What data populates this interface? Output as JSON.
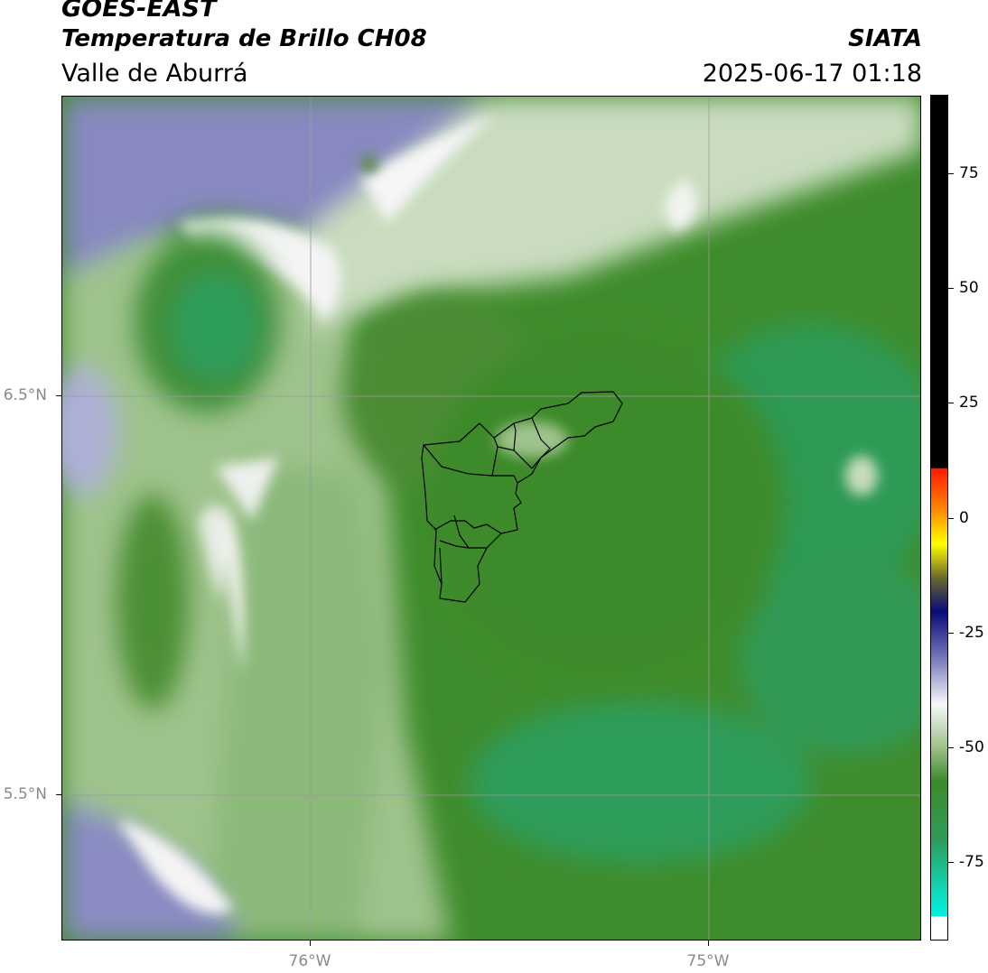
{
  "header": {
    "agency": "GOES-EAST",
    "title": "Temperatura de Brillo CH08",
    "subtitle": "Valle de Aburrá",
    "organization": "SIATA",
    "timestamp": "2025-06-17 01:18"
  },
  "map": {
    "lon_range": [
      -76.62,
      -74.47
    ],
    "lat_range": [
      5.13,
      6.75
    ],
    "latitude_labels": [
      {
        "value": 6.5,
        "label": "6.5°N"
      },
      {
        "value": 5.5,
        "label": "5.5°N"
      }
    ],
    "longitude_labels": [
      {
        "value": -76.0,
        "label": "76°W"
      },
      {
        "value": -75.0,
        "label": "75°W"
      }
    ],
    "gridlines": true,
    "boundary_overlay": "Valle de Aburrá municipalities",
    "colors": {
      "cold_cloud": "#8283bb",
      "white_band": "#f7f7f7",
      "green_pale": "#b6cfa8",
      "green_mid": "#4f8e36",
      "green_dark": "#3d8a2a",
      "green_teal": "#2e9c5a",
      "boundary": "#000000",
      "grid": "#9a9a9a"
    }
  },
  "colorbar": {
    "min": -92,
    "max": 92,
    "ticks": [
      {
        "value": 75,
        "label": "75"
      },
      {
        "value": 50,
        "label": "50"
      },
      {
        "value": 25,
        "label": "25"
      },
      {
        "value": 0,
        "label": "0"
      },
      {
        "value": -25,
        "label": "-25"
      },
      {
        "value": -50,
        "label": "-50"
      },
      {
        "value": -75,
        "label": "-75"
      }
    ]
  }
}
